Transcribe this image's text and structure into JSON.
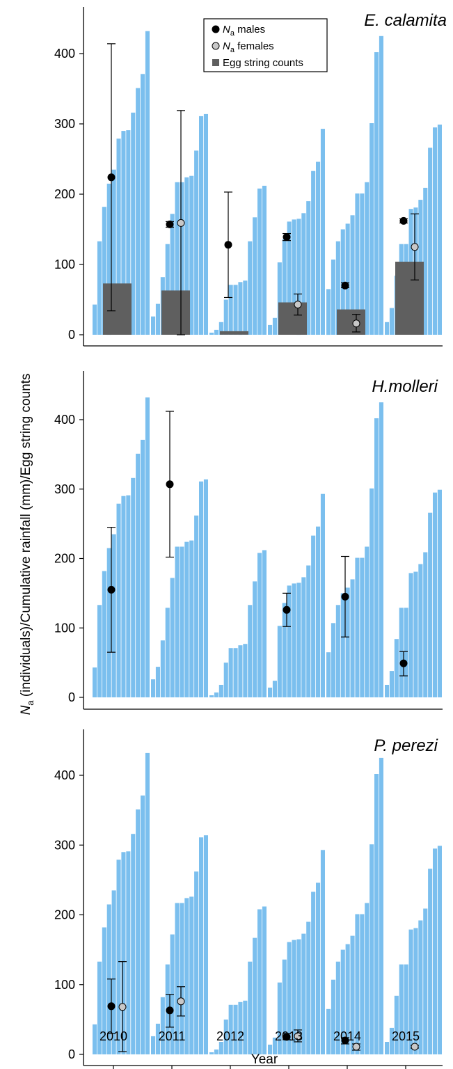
{
  "figure": {
    "ylabel_prefix": "N",
    "ylabel_sub": "a",
    "ylabel_rest": " (individuals)/Cumulative rainfall (mm)/Egg string counts",
    "xlabel": "Year"
  },
  "legend": {
    "males_prefix": "N",
    "males_sub": "a",
    "males_rest": " males",
    "females_prefix": "N",
    "females_sub": "a",
    "females_rest": " females",
    "eggs": "Egg string counts"
  },
  "colors": {
    "rain": "#7bbfee",
    "eggs": "#5f5f5f",
    "males": "#000000",
    "females": "#c8c8c8"
  },
  "chart_data": [
    {
      "type": "bar",
      "title": "E. calamita",
      "categories": [
        "2010",
        "2011",
        "2012",
        "2013",
        "2014",
        "2015"
      ],
      "ylim": [
        0,
        460
      ],
      "yticks": [
        0,
        100,
        200,
        300,
        400
      ],
      "rainfall": [
        [
          43,
          133,
          182,
          215,
          235,
          279,
          290,
          291,
          316,
          351,
          371,
          432
        ],
        [
          26,
          44,
          82,
          129,
          172,
          217,
          217,
          224,
          226,
          262,
          311,
          314
        ],
        [
          3,
          7,
          18,
          50,
          71,
          71,
          75,
          77,
          133,
          167,
          208,
          212
        ],
        [
          14,
          24,
          103,
          136,
          161,
          164,
          165,
          173,
          190,
          233,
          246,
          293
        ],
        [
          65,
          107,
          133,
          150,
          158,
          170,
          201,
          201,
          217,
          301,
          402,
          425
        ],
        [
          18,
          38,
          84,
          129,
          129,
          179,
          181,
          192,
          209,
          266,
          295,
          299
        ]
      ],
      "egg_strings": [
        73,
        63,
        5,
        46,
        36,
        104
      ],
      "males": [
        {
          "y": 224,
          "lo": 34,
          "hi": 414
        },
        {
          "y": 157,
          "lo": 153,
          "hi": 161
        },
        {
          "y": 128,
          "lo": 53,
          "hi": 203
        },
        {
          "y": 139,
          "lo": 134,
          "hi": 144
        },
        {
          "y": 70,
          "lo": 67,
          "hi": 74
        },
        {
          "y": 162,
          "lo": 159,
          "hi": 165
        }
      ],
      "females": [
        null,
        {
          "y": 159,
          "lo": 0,
          "hi": 319
        },
        null,
        {
          "y": 43,
          "lo": 28,
          "hi": 58
        },
        {
          "y": 16,
          "lo": 4,
          "hi": 29
        },
        {
          "y": 125,
          "lo": 78,
          "hi": 172
        }
      ]
    },
    {
      "type": "bar",
      "title": "H.molleri",
      "categories": [
        "2010",
        "2011",
        "2012",
        "2013",
        "2014",
        "2015"
      ],
      "ylim": [
        0,
        460
      ],
      "yticks": [
        0,
        100,
        200,
        300,
        400
      ],
      "rainfall": [
        [
          43,
          133,
          182,
          215,
          235,
          279,
          290,
          291,
          316,
          351,
          371,
          432
        ],
        [
          26,
          44,
          82,
          129,
          172,
          217,
          217,
          224,
          226,
          262,
          311,
          314
        ],
        [
          3,
          7,
          18,
          50,
          71,
          71,
          75,
          77,
          133,
          167,
          208,
          212
        ],
        [
          14,
          24,
          103,
          136,
          161,
          164,
          165,
          173,
          190,
          233,
          246,
          293
        ],
        [
          65,
          107,
          133,
          150,
          158,
          170,
          201,
          201,
          217,
          301,
          402,
          425
        ],
        [
          18,
          38,
          84,
          129,
          129,
          179,
          181,
          192,
          209,
          266,
          295,
          299
        ]
      ],
      "egg_strings": [],
      "males": [
        {
          "y": 155,
          "lo": 65,
          "hi": 245
        },
        {
          "y": 307,
          "lo": 202,
          "hi": 412
        },
        null,
        {
          "y": 126,
          "lo": 102,
          "hi": 150
        },
        {
          "y": 145,
          "lo": 87,
          "hi": 203
        },
        {
          "y": 49,
          "lo": 31,
          "hi": 66
        }
      ],
      "females": [
        null,
        null,
        null,
        null,
        null,
        null
      ]
    },
    {
      "type": "bar",
      "title": "P. perezi",
      "categories": [
        "2010",
        "2011",
        "2012",
        "2013",
        "2014",
        "2015"
      ],
      "ylim": [
        0,
        460
      ],
      "yticks": [
        0,
        100,
        200,
        300,
        400
      ],
      "rainfall": [
        [
          43,
          133,
          182,
          215,
          235,
          279,
          290,
          291,
          316,
          351,
          371,
          432
        ],
        [
          26,
          44,
          82,
          129,
          172,
          217,
          217,
          224,
          226,
          262,
          311,
          314
        ],
        [
          3,
          7,
          18,
          50,
          71,
          71,
          75,
          77,
          133,
          167,
          208,
          212
        ],
        [
          14,
          24,
          103,
          136,
          161,
          164,
          165,
          173,
          190,
          233,
          246,
          293
        ],
        [
          65,
          107,
          133,
          150,
          158,
          170,
          201,
          201,
          217,
          301,
          402,
          425
        ],
        [
          18,
          38,
          84,
          129,
          129,
          179,
          181,
          192,
          209,
          266,
          295,
          299
        ]
      ],
      "egg_strings": [],
      "males": [
        {
          "y": 69,
          "lo": 30,
          "hi": 108
        },
        {
          "y": 63,
          "lo": 39,
          "hi": 86
        },
        null,
        {
          "y": 25,
          "lo": 21,
          "hi": 30
        },
        {
          "y": 20,
          "lo": 15,
          "hi": 24
        },
        null
      ],
      "females": [
        {
          "y": 68,
          "lo": 4,
          "hi": 133
        },
        {
          "y": 76,
          "lo": 55,
          "hi": 97
        },
        null,
        {
          "y": 26,
          "lo": 18,
          "hi": 35
        },
        {
          "y": 11,
          "lo": 6,
          "hi": 15
        },
        {
          "y": 11,
          "lo": 9,
          "hi": 13
        }
      ]
    }
  ]
}
